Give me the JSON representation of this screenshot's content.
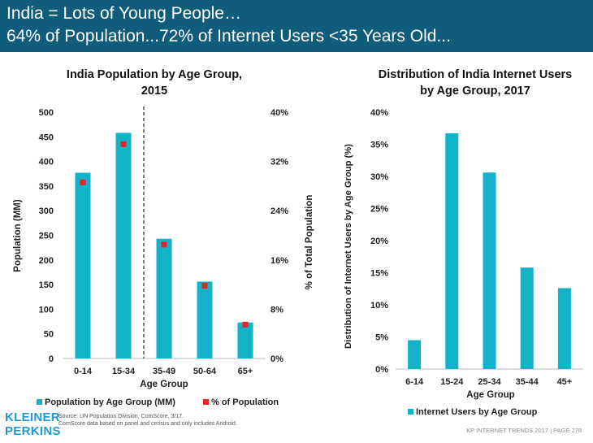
{
  "header": {
    "line1": "India = Lots of Young People…",
    "line2": "64% of Population...72% of Internet Users <35 Years Old..."
  },
  "colors": {
    "header_bg": "#0f5d7b",
    "bar": "#12b3c8",
    "marker": "#e8232a",
    "logo": "#1f9ad6"
  },
  "chart_data": [
    {
      "type": "bar",
      "title": "India Population by Age Group, 2015",
      "xlabel": "Age Group",
      "ylabel": "Population (MM)",
      "y2label": "% of Total Population",
      "categories": [
        "0-14",
        "15-34",
        "35-49",
        "50-64",
        "65+"
      ],
      "ylim": [
        0,
        500
      ],
      "yticks": [
        "0",
        "50",
        "100",
        "150",
        "200",
        "250",
        "300",
        "350",
        "400",
        "450",
        "500"
      ],
      "y2lim": [
        0,
        40
      ],
      "y2ticks": [
        "0%",
        "8%",
        "16%",
        "24%",
        "32%",
        "40%"
      ],
      "series": [
        {
          "name": "Population by Age Group (MM)",
          "type": "bar",
          "values": [
            377,
            458,
            243,
            156,
            73
          ]
        },
        {
          "name": "% of Population",
          "type": "marker",
          "axis": "right",
          "values": [
            28.6,
            34.8,
            18.5,
            11.8,
            5.5
          ]
        }
      ],
      "divider_after_category": "15-34",
      "legend": "bottom"
    },
    {
      "type": "bar",
      "title": "Distribution of India Internet Users by Age Group, 2017",
      "xlabel": "Age Group",
      "ylabel": "Distribution of Internet Users by Age Group (%)",
      "categories": [
        "6-14",
        "15-24",
        "25-34",
        "35-44",
        "45+"
      ],
      "ylim": [
        0,
        40
      ],
      "yticks": [
        "0%",
        "5%",
        "10%",
        "15%",
        "20%",
        "25%",
        "30%",
        "35%",
        "40%"
      ],
      "series": [
        {
          "name": "Internet Users by Age Group",
          "type": "bar",
          "values": [
            4.5,
            36.7,
            30.6,
            15.8,
            12.6
          ]
        }
      ],
      "legend": "bottom"
    }
  ],
  "chart_titles": {
    "left_line1": "India Population by Age Group,",
    "left_line2": "2015",
    "right_line1": "Distribution of India Internet Users",
    "right_line2": "by Age Group, 2017"
  },
  "logo": {
    "line1": "KLEINER",
    "line2": "PERKINS"
  },
  "source": {
    "line1": "Source: UN Population Division, ComScore, 3/17.",
    "line2": "ComScore data based on panel and census and only includes Android."
  },
  "footer": "KP INTERNET TRENDS 2017  |  PAGE 278"
}
